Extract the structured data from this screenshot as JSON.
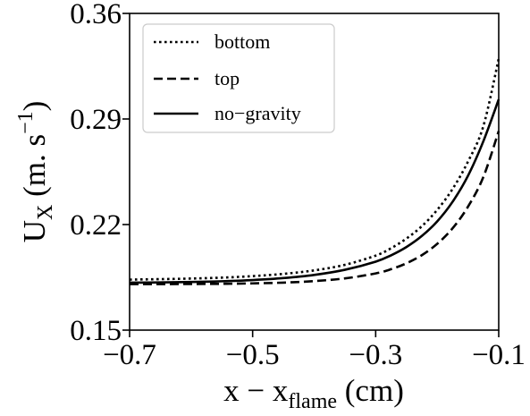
{
  "chart_data": {
    "type": "line",
    "xlabel": {
      "main": "x − x",
      "sub": "flame",
      "tail": " (cm)"
    },
    "ylabel": {
      "main": "U",
      "sub": "X",
      "tail": " (m. s",
      "sup": "−1",
      "end": ")"
    },
    "xlim": [
      -0.7,
      -0.1
    ],
    "ylim": [
      0.15,
      0.36
    ],
    "xticks": [
      -0.7,
      -0.5,
      -0.3,
      -0.1
    ],
    "xtick_labels": [
      "−0.7",
      "−0.5",
      "−0.3",
      "−0.1"
    ],
    "yticks": [
      0.15,
      0.22,
      0.29,
      0.36
    ],
    "ytick_labels": [
      "0.15",
      "0.22",
      "0.29",
      "0.36"
    ],
    "grid": false,
    "legend_position": "top-left",
    "x": [
      -0.7,
      -0.65,
      -0.6,
      -0.55,
      -0.5,
      -0.45,
      -0.4,
      -0.35,
      -0.3,
      -0.275,
      -0.25,
      -0.225,
      -0.2,
      -0.175,
      -0.15,
      -0.125,
      -0.1
    ],
    "series": [
      {
        "name": "bottom",
        "style": "dotted",
        "values": [
          0.1835,
          0.1838,
          0.1842,
          0.1848,
          0.1858,
          0.1873,
          0.1896,
          0.1933,
          0.1994,
          0.2043,
          0.2107,
          0.2189,
          0.2297,
          0.2436,
          0.2617,
          0.2852,
          0.33
        ]
      },
      {
        "name": "top",
        "style": "dashed",
        "values": [
          0.1805,
          0.1805,
          0.1806,
          0.1807,
          0.181,
          0.1815,
          0.1825,
          0.1843,
          0.1876,
          0.1904,
          0.1943,
          0.1997,
          0.2072,
          0.2175,
          0.2318,
          0.2515,
          0.282
        ]
      },
      {
        "name": "no−gravity",
        "style": "solid",
        "values": [
          0.1815,
          0.1816,
          0.1819,
          0.1824,
          0.1832,
          0.1845,
          0.1866,
          0.19,
          0.1954,
          0.1996,
          0.2051,
          0.2124,
          0.2221,
          0.2351,
          0.2523,
          0.2752,
          0.303
        ]
      }
    ]
  }
}
